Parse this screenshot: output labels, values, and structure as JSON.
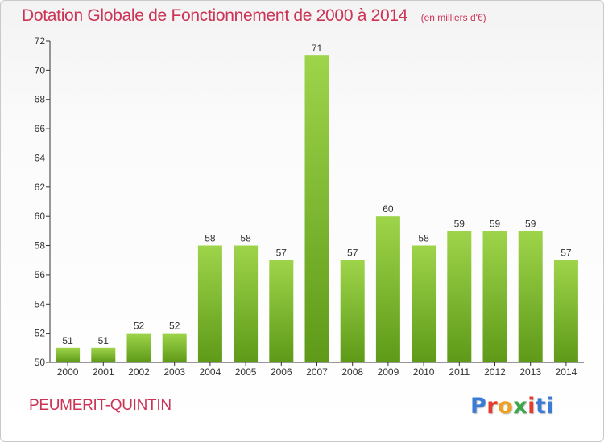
{
  "colors": {
    "title": "#cc3355",
    "bar_light": "#9ed44a",
    "bar_dark": "#5e9a18",
    "axis": "#333333",
    "grid": "#dddddd",
    "logo": [
      "#3a7bd5",
      "#e63b2e",
      "#f0a01c",
      "#3aa84a",
      "#e63b2e",
      "#3a7bd5"
    ]
  },
  "header": {
    "title": "Dotation Globale de Fonctionnement de 2000 à 2014",
    "unit": "(en milliers d'€)"
  },
  "footer": {
    "commune": "PEUMERIT-QUINTIN",
    "logo_text": "Proxiti"
  },
  "chart_data": {
    "type": "bar",
    "title": "Dotation Globale de Fonctionnement de 2000 à 2014",
    "subtitle": "(en milliers d'€)",
    "xlabel": "",
    "ylabel": "",
    "categories": [
      "2000",
      "2001",
      "2002",
      "2003",
      "2004",
      "2005",
      "2006",
      "2007",
      "2008",
      "2009",
      "2010",
      "2011",
      "2012",
      "2013",
      "2014"
    ],
    "values": [
      51,
      51,
      52,
      52,
      58,
      58,
      57,
      71,
      57,
      60,
      58,
      59,
      59,
      59,
      57
    ],
    "ylim": [
      50,
      72
    ],
    "yticks": [
      50,
      52,
      54,
      56,
      58,
      60,
      62,
      64,
      66,
      68,
      70,
      72
    ],
    "grid": false,
    "legend": "none"
  }
}
